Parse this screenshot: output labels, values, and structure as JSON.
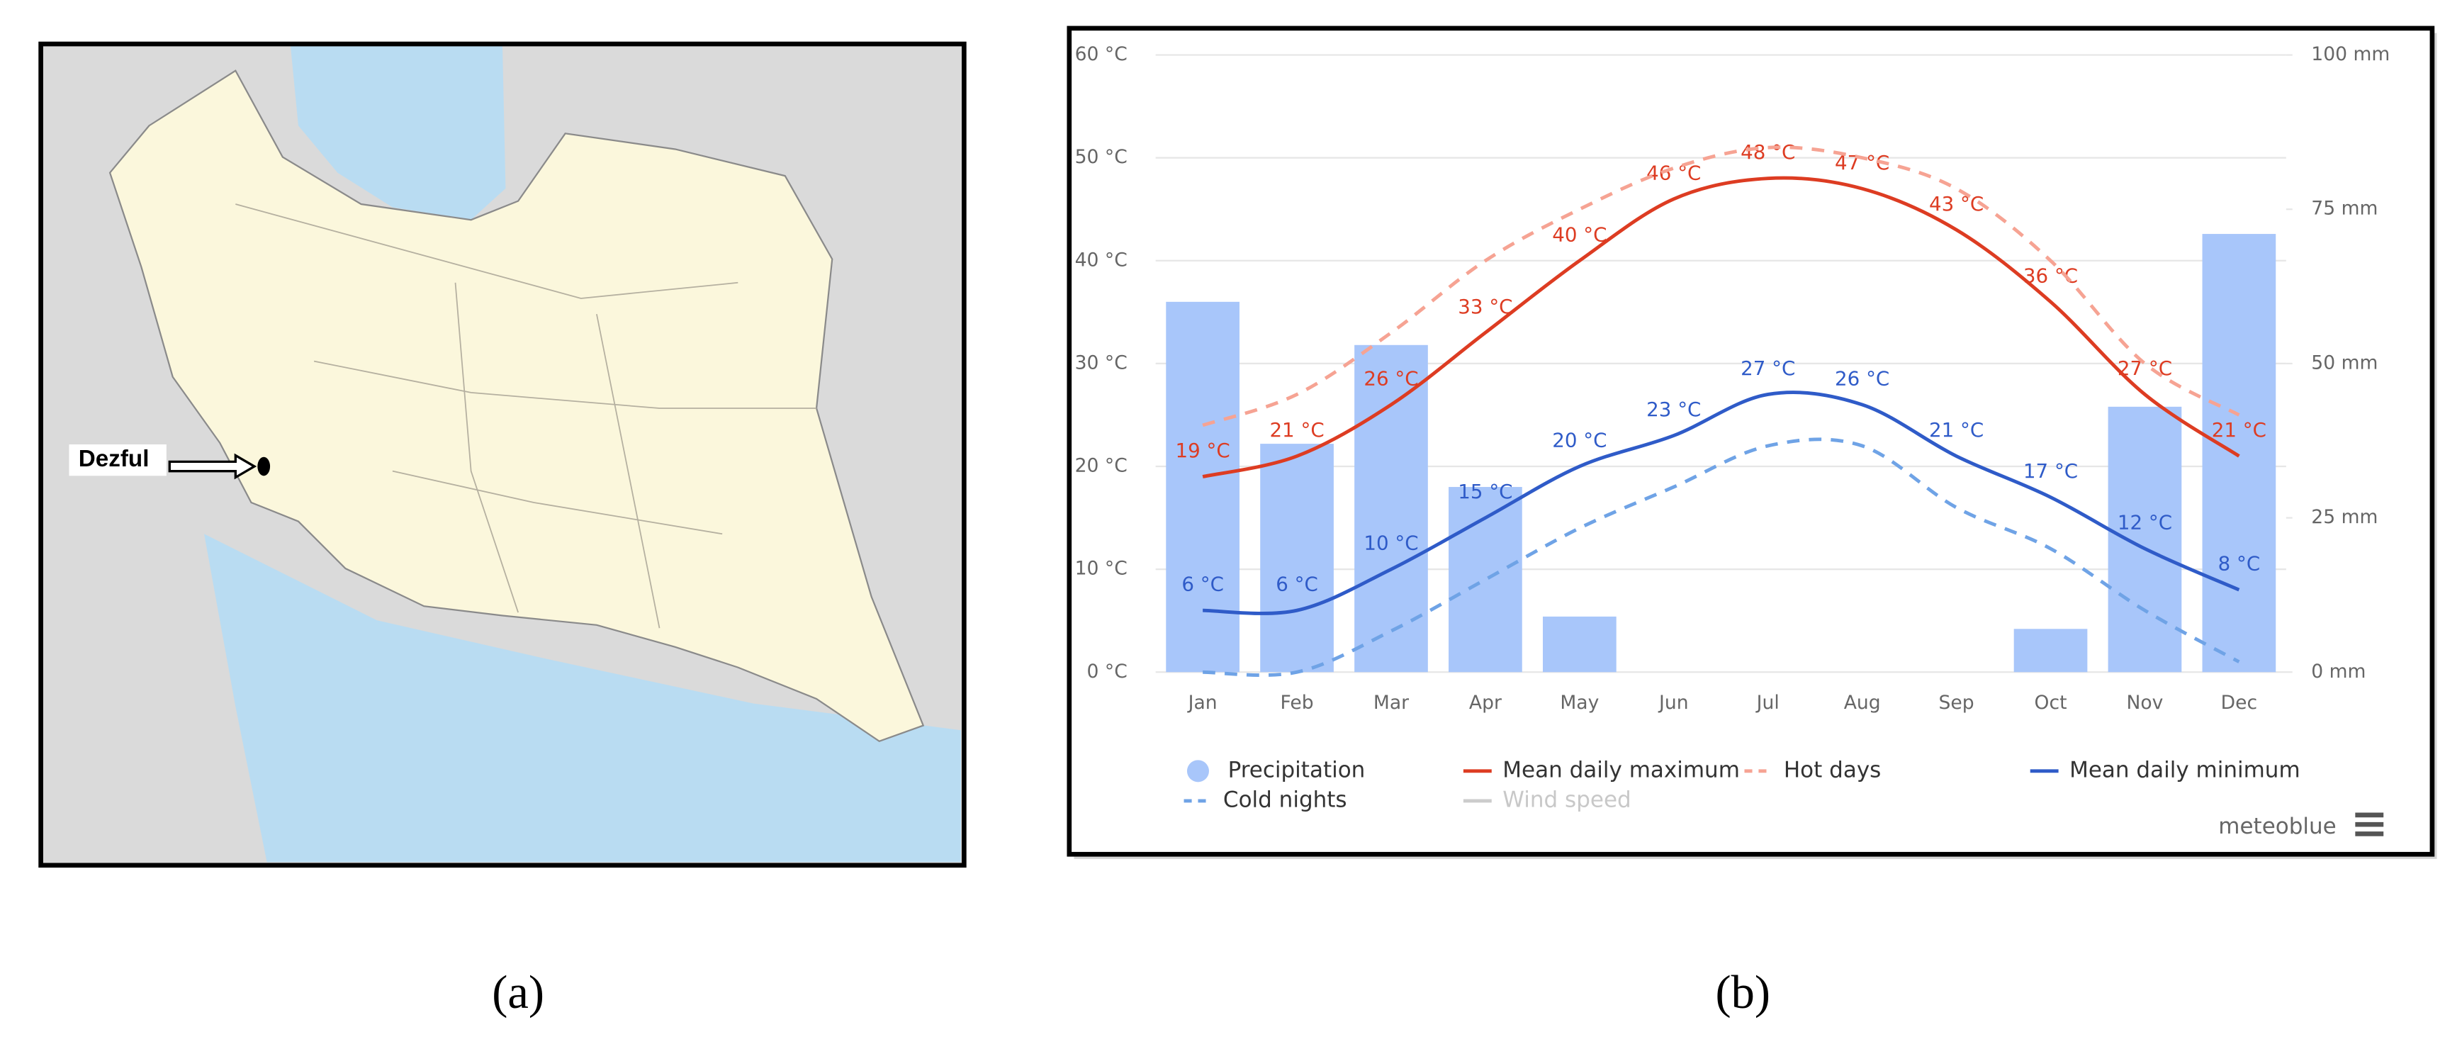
{
  "figure": {
    "captions": [
      "(a)",
      "(b)"
    ]
  },
  "map": {
    "label": "Dezful"
  },
  "chart_data": {
    "type": "combo",
    "categories": [
      "Jan",
      "Feb",
      "Mar",
      "Apr",
      "May",
      "Jun",
      "Jul",
      "Aug",
      "Sep",
      "Oct",
      "Nov",
      "Dec"
    ],
    "series": [
      {
        "name": "Precipitation",
        "type": "bar",
        "axis": "y2",
        "color": "#a8c6fa",
        "values": [
          60,
          37,
          53,
          30,
          9,
          0,
          0,
          0,
          0,
          7,
          43,
          71
        ]
      },
      {
        "name": "Mean daily maximum",
        "type": "line",
        "color": "#dd3c22",
        "values": [
          19,
          21,
          26,
          33,
          40,
          46,
          48,
          47,
          43,
          36,
          27,
          21
        ],
        "value_labels": [
          "19 °C",
          "21 °C",
          "26 °C",
          "33 °C",
          "40 °C",
          "46 °C",
          "48 °C",
          "47 °C",
          "43 °C",
          "36 °C",
          "27 °C",
          "21 °C"
        ]
      },
      {
        "name": "Hot days",
        "type": "line",
        "dashed": true,
        "color": "#f6a393",
        "values": [
          24,
          27,
          33,
          40,
          45,
          49,
          51,
          50,
          47,
          40,
          30,
          25
        ]
      },
      {
        "name": "Mean daily minimum",
        "type": "line",
        "color": "#2f5bc8",
        "values": [
          6,
          6,
          10,
          15,
          20,
          23,
          27,
          26,
          21,
          17,
          12,
          8
        ],
        "value_labels": [
          "6 °C",
          "6 °C",
          "10 °C",
          "15 °C",
          "20 °C",
          "23 °C",
          "27 °C",
          "26 °C",
          "21 °C",
          "17 °C",
          "12 °C",
          "8 °C"
        ]
      },
      {
        "name": "Cold nights",
        "type": "line",
        "dashed": true,
        "color": "#6fa3e6",
        "values": [
          0,
          0,
          4,
          9,
          14,
          18,
          22,
          22,
          16,
          12,
          6,
          1
        ]
      }
    ],
    "inactive_legend": [
      {
        "name": "Wind speed",
        "color": "#cccccc"
      }
    ],
    "ylim": [
      0,
      60
    ],
    "yticks": [
      {
        "value": 0,
        "label": "0 °C"
      },
      {
        "value": 10,
        "label": "10 °C"
      },
      {
        "value": 20,
        "label": "20 °C"
      },
      {
        "value": 30,
        "label": "30 °C"
      },
      {
        "value": 40,
        "label": "40 °C"
      },
      {
        "value": 50,
        "label": "50 °C"
      },
      {
        "value": 60,
        "label": "60 °C"
      }
    ],
    "y2lim": [
      0,
      100
    ],
    "y2ticks": [
      {
        "value": 0,
        "label": "0 mm"
      },
      {
        "value": 25,
        "label": "25 mm"
      },
      {
        "value": 50,
        "label": "50 mm"
      },
      {
        "value": 75,
        "label": "75 mm"
      },
      {
        "value": 100,
        "label": "100 mm"
      }
    ],
    "grid": true,
    "credit": "meteoblue"
  }
}
